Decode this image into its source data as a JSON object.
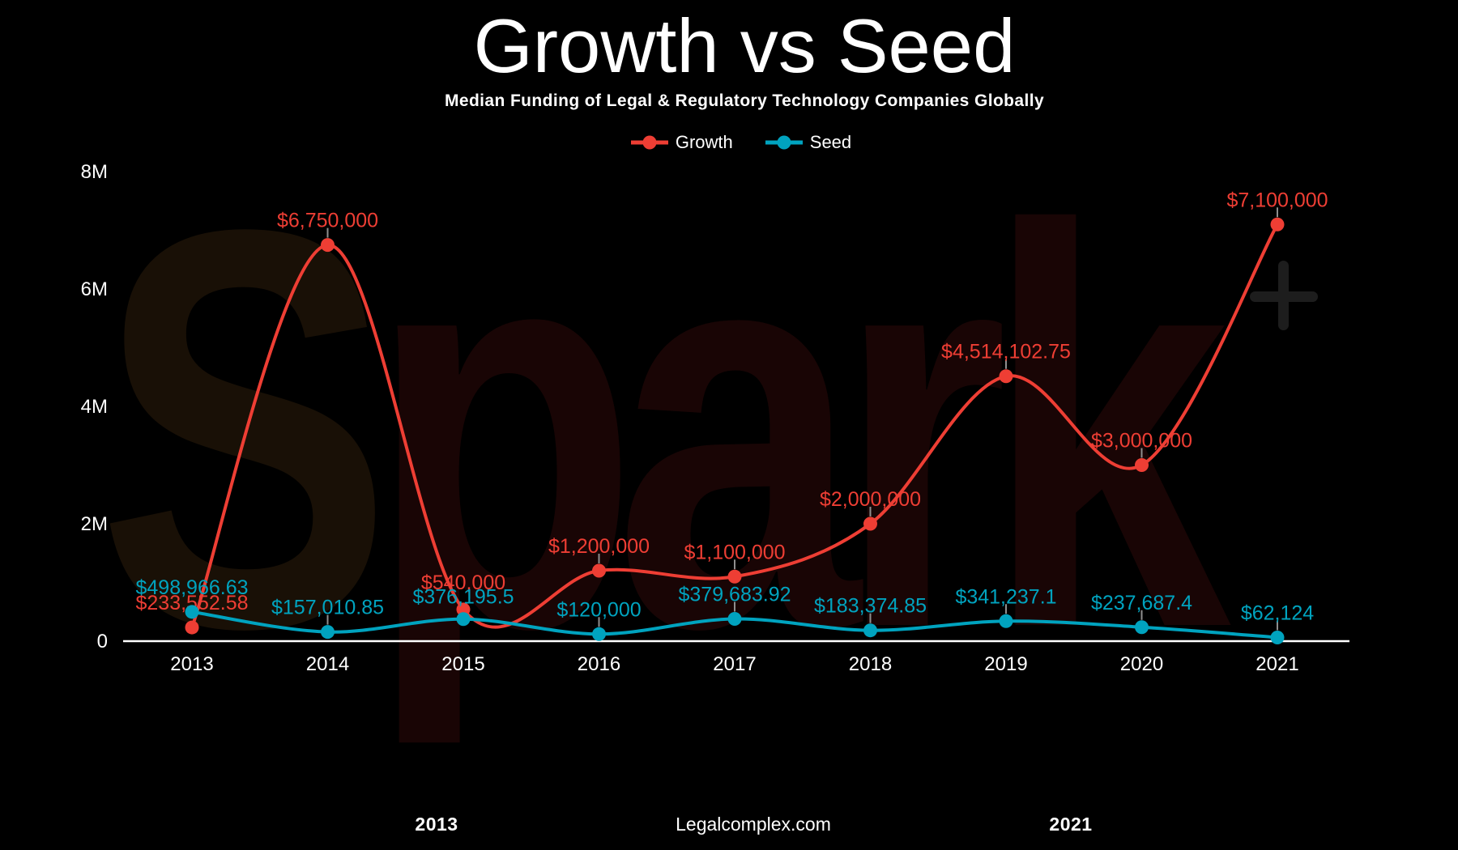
{
  "title": "Growth vs Seed",
  "subtitle": "Median Funding of Legal & Regulatory Technology Companies Globally",
  "legend": [
    {
      "label": "Growth",
      "color": "#ee3e34"
    },
    {
      "label": "Seed",
      "color": "#00a3bf"
    }
  ],
  "watermark": {
    "first_letter": "S",
    "rest": "park",
    "plus_glyph": "+"
  },
  "footer": {
    "left_year": "2013",
    "brand": "Legalcomplex.com",
    "right_year": "2021"
  },
  "colors": {
    "background": "#000000",
    "growth": "#ee3e34",
    "seed": "#00a3bf",
    "axis_text": "#ffffff",
    "axis_line": "#ffffff",
    "connector": "#8f8f8f"
  },
  "chart_data": {
    "type": "line",
    "x": [
      "2013",
      "2014",
      "2015",
      "2016",
      "2017",
      "2018",
      "2019",
      "2020",
      "2021"
    ],
    "xlabel": "",
    "ylabel": "",
    "ylim": [
      0,
      8000000
    ],
    "yticks": [
      {
        "value": 0,
        "label": "0"
      },
      {
        "value": 2000000,
        "label": "2M"
      },
      {
        "value": 4000000,
        "label": "4M"
      },
      {
        "value": 6000000,
        "label": "6M"
      },
      {
        "value": 8000000,
        "label": "8M"
      }
    ],
    "grid": false,
    "legend_position": "top",
    "line_style": "smoothed",
    "series": [
      {
        "name": "Growth",
        "color": "#ee3e34",
        "values": [
          233552.58,
          6750000,
          540000,
          1200000,
          1100000,
          2000000,
          4514102.75,
          3000000,
          7100000
        ],
        "labels": [
          "$233,552.58",
          "$6,750,000",
          "$540,000",
          "$1,200,000",
          "$1,100,000",
          "$2,000,000",
          "$4,514,102.75",
          "$3,000,000",
          "$7,100,000"
        ]
      },
      {
        "name": "Seed",
        "color": "#00a3bf",
        "values": [
          498966.63,
          157010.85,
          376195.5,
          120000,
          379683.92,
          183374.85,
          341237.1,
          237687.4,
          62124
        ],
        "labels": [
          "$498,966.63",
          "$157,010.85",
          "$376,195.5",
          "$120,000",
          "$379,683.92",
          "$183,374.85",
          "$341,237.1",
          "$237,687.4",
          "$62,124"
        ]
      }
    ]
  }
}
